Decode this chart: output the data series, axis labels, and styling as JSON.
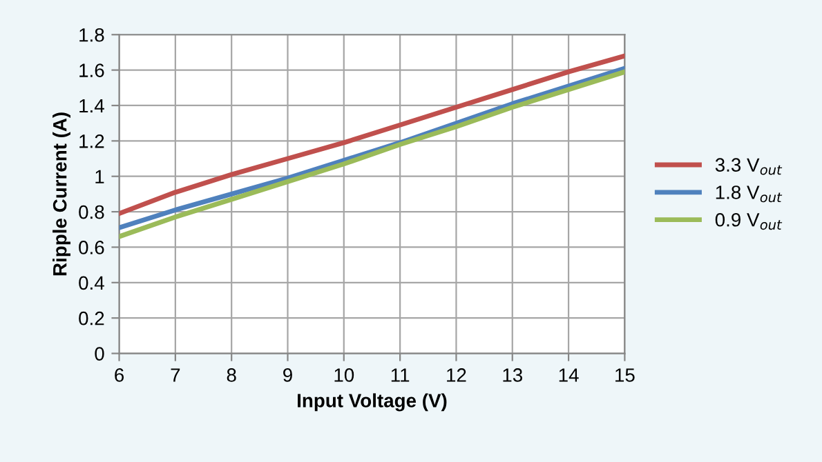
{
  "chart_data": {
    "type": "line",
    "xlabel": "Input Voltage (V)",
    "ylabel": "Ripple Current (A)",
    "x": [
      6,
      7,
      8,
      9,
      10,
      11,
      12,
      13,
      14,
      15
    ],
    "series": [
      {
        "name": "3.3 V$_{out}$",
        "color": "#c0504d",
        "values": [
          0.79,
          0.91,
          1.01,
          1.1,
          1.19,
          1.29,
          1.39,
          1.49,
          1.59,
          1.68
        ]
      },
      {
        "name": "1.8 V$_{out}$",
        "color": "#4f81bd",
        "values": [
          0.71,
          0.81,
          0.9,
          0.99,
          1.09,
          1.19,
          1.3,
          1.41,
          1.51,
          1.61
        ]
      },
      {
        "name": "0.9 V$_{out}$",
        "color": "#9bbb59",
        "values": [
          0.66,
          0.77,
          0.87,
          0.97,
          1.07,
          1.18,
          1.28,
          1.39,
          1.49,
          1.59
        ]
      }
    ],
    "xlim": [
      6,
      15
    ],
    "xticks": [
      6,
      7,
      8,
      9,
      10,
      11,
      12,
      13,
      14,
      15
    ],
    "ylim": [
      0,
      1.8
    ],
    "yticks": [
      0,
      0.2,
      0.4,
      0.6,
      0.8,
      1,
      1.2,
      1.4,
      1.6,
      1.8
    ],
    "grid": true,
    "legend": "right",
    "marker": "none",
    "line_style": "solid"
  }
}
